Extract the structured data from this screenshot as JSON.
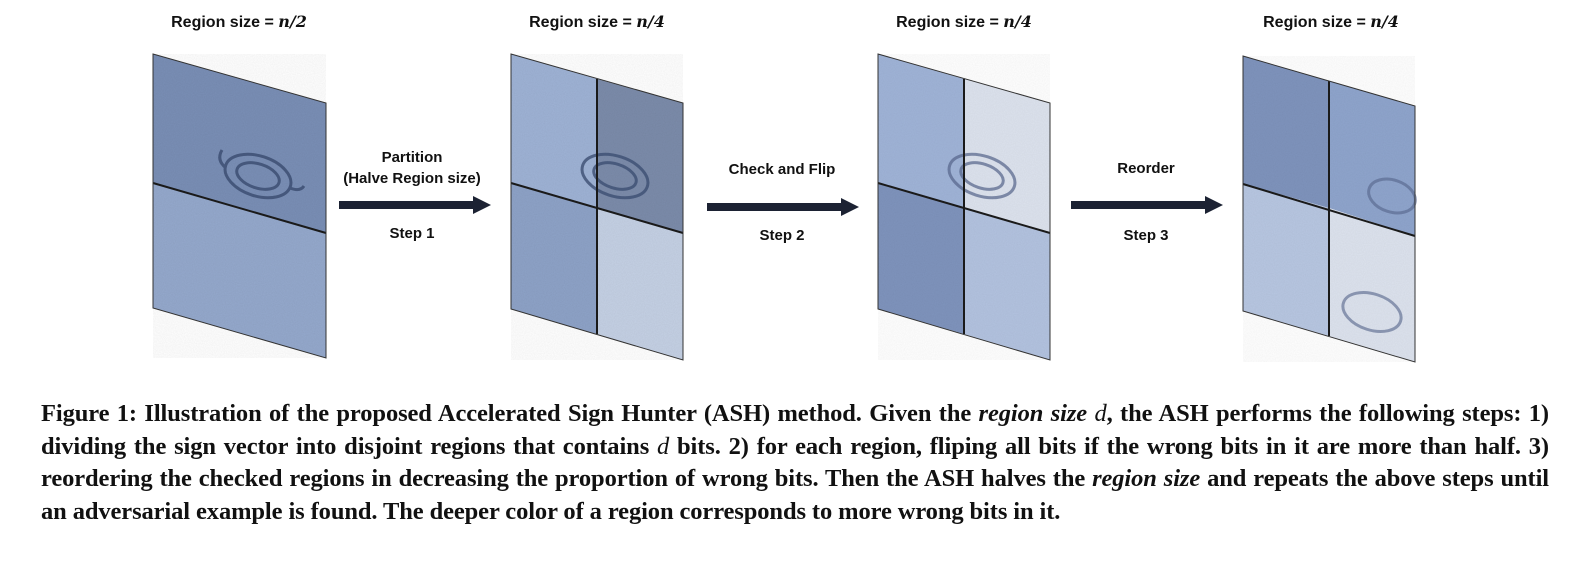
{
  "panels": [
    {
      "title_prefix": "Region size = ",
      "title_math": "n/2"
    },
    {
      "title_prefix": "Region size = ",
      "title_math": "n/4"
    },
    {
      "title_prefix": "Region size = ",
      "title_math": "n/4"
    },
    {
      "title_prefix": "Region size = ",
      "title_math": "n/4"
    }
  ],
  "steps": [
    {
      "line1": "Partition",
      "line2": "(Halve Region size)",
      "step": "Step 1"
    },
    {
      "line1": "Check and Flip",
      "step": "Step 2"
    },
    {
      "line1": "Reorder",
      "step": "Step 3"
    }
  ],
  "caption": {
    "p1": "Figure 1: Illustration of the proposed Accelerated Sign Hunter (ASH) method. Given the ",
    "i1": "region size",
    "m1": "d",
    "p2": ", the ASH performs the following steps: 1) dividing the sign vector into disjoint regions that contains ",
    "m2": "d",
    "p3": " bits. 2) for each region, fliping all bits if the wrong bits in it are more than half. 3) reordering the checked regions in decreasing the proportion of wrong bits. Then the ASH halves the ",
    "i2": "region size",
    "p4": " and repeats the above steps until an adversarial example is found. The deeper color of a region corresponds to more wrong bits in it."
  },
  "colors": {
    "arrow": "#1c2233",
    "deep": "#6f86b0",
    "mid": "#90a6cc",
    "light": "#b9c8e2",
    "pale": "#dde3ee",
    "edge": "#1a1a1a"
  }
}
